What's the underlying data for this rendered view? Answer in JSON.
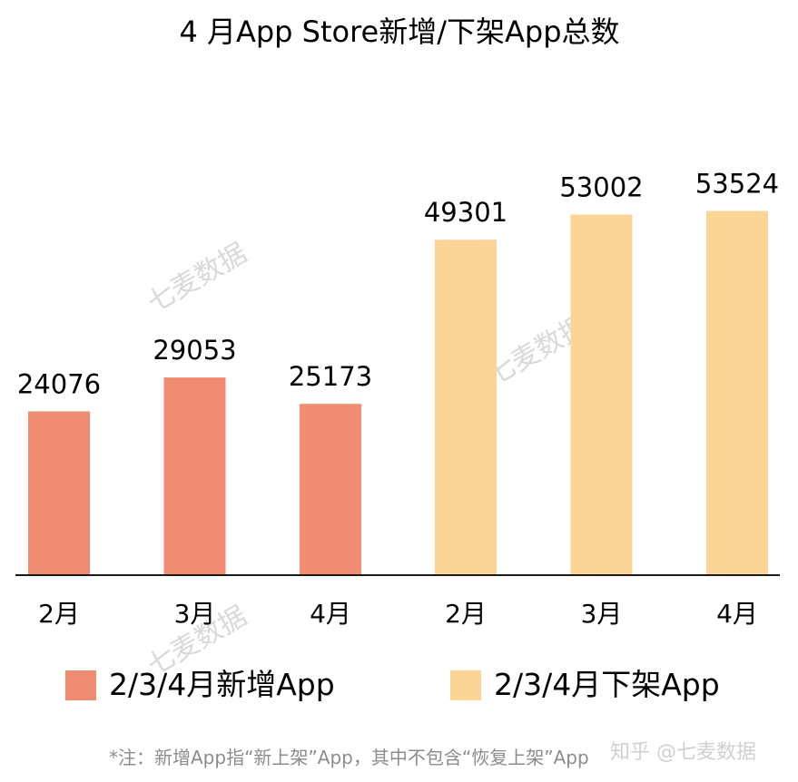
{
  "chart_data": {
    "type": "bar",
    "title": "4 月App Store新增/下架App总数",
    "series": [
      {
        "name": "2/3/4月新增App",
        "color": "#f08c72",
        "categories": [
          "2月",
          "3月",
          "4月"
        ],
        "values": [
          24076,
          29053,
          25173
        ]
      },
      {
        "name": "2/3/4月下架App",
        "color": "#fbd595",
        "categories": [
          "2月",
          "3月",
          "4月"
        ],
        "values": [
          49301,
          53002,
          53524
        ]
      }
    ],
    "ylim": [
      0,
      60000
    ],
    "grid": false,
    "legend": "bottom"
  },
  "footnote": "*注：新增App指“新上架”App，其中不包含“恢复上架”App",
  "watermark": "七麦数据",
  "brand": "知乎 @七麦数据"
}
